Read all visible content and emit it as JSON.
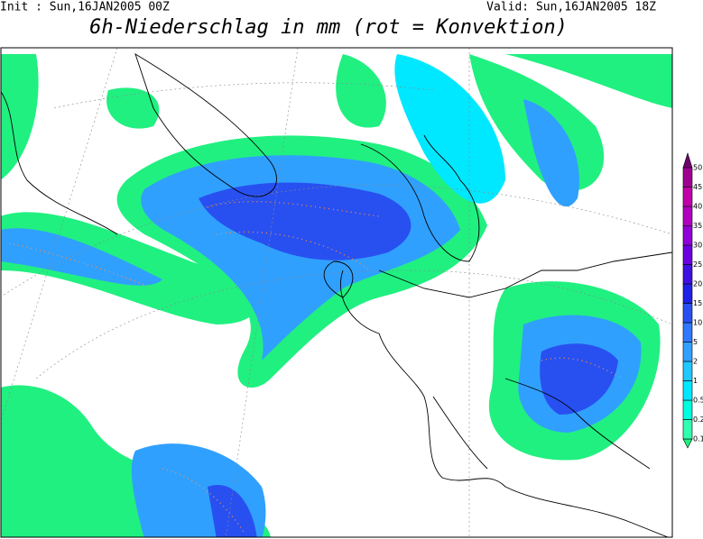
{
  "header": {
    "init": "Init : Sun,16JAN2005 00Z",
    "valid": "Valid: Sun,16JAN2005 18Z",
    "title": "6h-Niederschlag in mm (rot = Konvektion)"
  },
  "legend": {
    "levels": [
      "0.1",
      "0.2",
      "0.5",
      "1",
      "2",
      "5",
      "10",
      "15",
      "20",
      "25",
      "30",
      "35",
      "40",
      "45",
      "50"
    ],
    "colors": [
      "#20f080",
      "#30ffb0",
      "#00ffe0",
      "#00e8ff",
      "#20c8ff",
      "#30a0ff",
      "#3078ff",
      "#2850f0",
      "#2020e8",
      "#4010e0",
      "#6a00e0",
      "#9000d8",
      "#b000c0",
      "#c000a8",
      "#a00090",
      "#700070"
    ]
  }
}
